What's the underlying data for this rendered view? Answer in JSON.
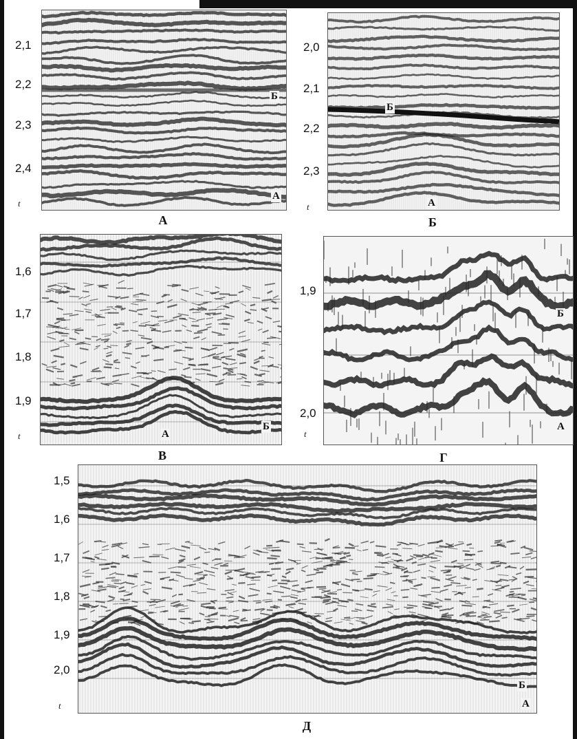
{
  "axis_symbol": "t",
  "panels": [
    {
      "id": "A",
      "caption": "А",
      "ticks": [
        "2,1",
        "2,2",
        "2,3",
        "2,4"
      ],
      "horizon_labels": [
        "Б",
        "А"
      ]
    },
    {
      "id": "B",
      "caption": "Б",
      "ticks": [
        "2,0",
        "2,1",
        "2,2",
        "2,3"
      ],
      "horizon_labels": [
        "Б",
        "А"
      ]
    },
    {
      "id": "V",
      "caption": "В",
      "ticks": [
        "1,6",
        "1,7",
        "1,8",
        "1,9"
      ],
      "horizon_labels": [
        "А",
        "Б"
      ]
    },
    {
      "id": "G",
      "caption": "Г",
      "ticks": [
        "1,9",
        "2,0"
      ],
      "horizon_labels": [
        "Б",
        "А"
      ]
    },
    {
      "id": "D",
      "caption": "Д",
      "ticks": [
        "1,5",
        "1,6",
        "1,7",
        "1,8",
        "1,9",
        "2,0"
      ],
      "horizon_labels": [
        "Б",
        "А"
      ]
    }
  ]
}
